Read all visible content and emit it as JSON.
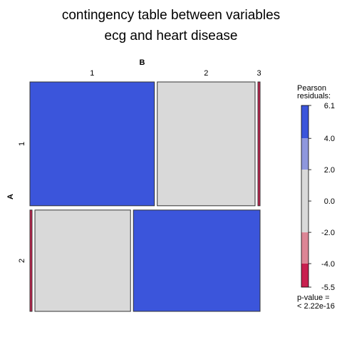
{
  "title": [
    "contingency table between variables",
    "ecg and heart disease"
  ],
  "chart_data": {
    "type": "mosaic",
    "title": "contingency table between variables ecg and heart disease",
    "row_variable": "A",
    "col_variable": "B",
    "rows": [
      "1",
      "2"
    ],
    "cols": [
      "1",
      "2",
      "3"
    ],
    "row_proportions": [
      0.55,
      0.45
    ],
    "cells": [
      {
        "row": "1",
        "col": "1",
        "proportion": 0.56,
        "residual_band": "4.0 to 6.1",
        "color": "#3b55db"
      },
      {
        "row": "1",
        "col": "2",
        "proportion": 0.44,
        "residual_band": "-2.0 to 2.0",
        "color": "#d9d9d9"
      },
      {
        "row": "1",
        "col": "3",
        "proportion": 0.0,
        "residual_band": "-5.5 to -4.0",
        "color": "#c8204f"
      },
      {
        "row": "2",
        "col": "1",
        "proportion": 0.0,
        "residual_band": "-5.5 to -4.0",
        "color": "#c8204f"
      },
      {
        "row": "2",
        "col": "2",
        "proportion": 0.43,
        "residual_band": "-2.0 to 2.0",
        "color": "#d9d9d9"
      },
      {
        "row": "2",
        "col": "3",
        "proportion": 0.57,
        "residual_band": "4.0 to 6.1",
        "color": "#3b55db"
      }
    ],
    "legend": {
      "title": [
        "Pearson",
        "residuals:"
      ],
      "min": -5.5,
      "max": 6.1,
      "ticks": [
        "6.1",
        "4.0",
        "2.0",
        "0.0",
        "-2.0",
        "-4.0",
        "-5.5"
      ],
      "tick_values": [
        6.1,
        4.0,
        2.0,
        0.0,
        -2.0,
        -4.0,
        -5.5
      ],
      "bands": [
        {
          "from": 4.0,
          "to": 6.1,
          "color": "#3b55db"
        },
        {
          "from": 2.0,
          "to": 4.0,
          "color": "#8e97dd"
        },
        {
          "from": -2.0,
          "to": 2.0,
          "color": "#d9d9d9"
        },
        {
          "from": -4.0,
          "to": -2.0,
          "color": "#dc8595"
        },
        {
          "from": -5.5,
          "to": -4.0,
          "color": "#c8204f"
        }
      ]
    },
    "p_value": [
      "p-value =",
      "< 2.22e-16"
    ]
  }
}
